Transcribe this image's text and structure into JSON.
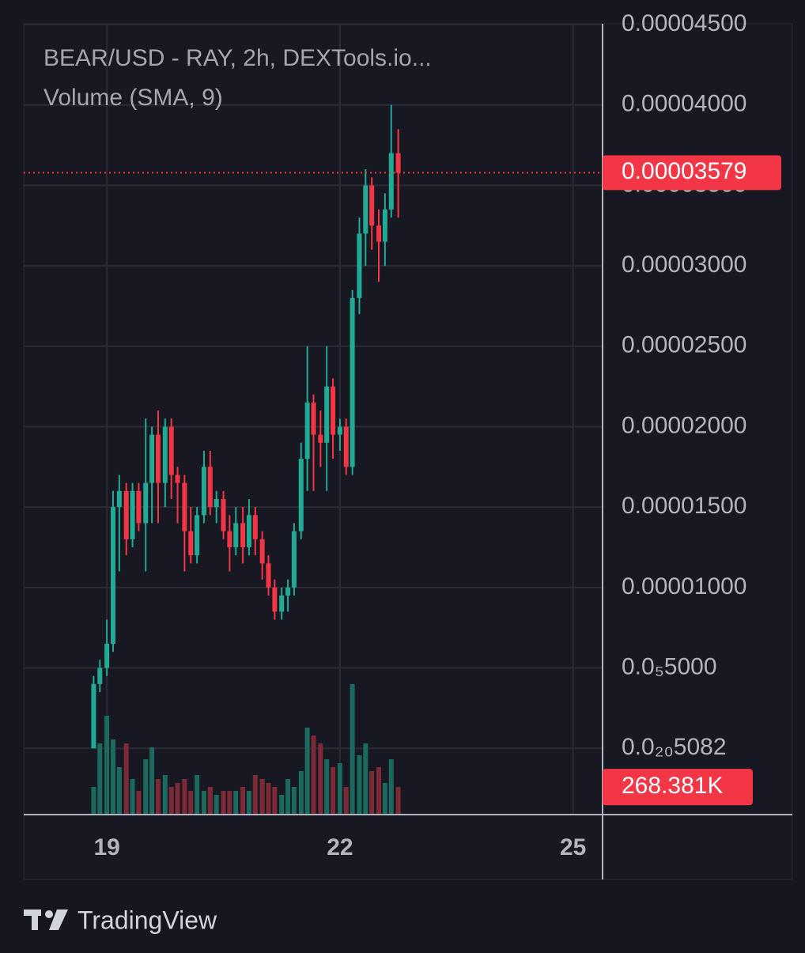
{
  "chart_data": {
    "type": "candlestick",
    "title": "BEAR/USD - RAY, 2h, DEXTools.io...",
    "subtitle": "Volume (SMA, 9)",
    "footer": "TradingView",
    "x": [
      18.83,
      18.91,
      19,
      19.08,
      19.16,
      19.25,
      19.33,
      19.41,
      19.5,
      19.58,
      19.66,
      19.75,
      19.83,
      19.91,
      20,
      20.08,
      20.16,
      20.25,
      20.33,
      20.41,
      20.5,
      20.58,
      20.66,
      20.75,
      20.83,
      20.91,
      21,
      21.08,
      21.16,
      21.25,
      21.33,
      21.41,
      21.5,
      21.58,
      21.66,
      21.75,
      21.83,
      21.91,
      22,
      22.08,
      22.16,
      22.25,
      22.33,
      22.41,
      22.5,
      22.58,
      22.66,
      22.75
    ],
    "open": [
      0.0,
      4e-06,
      5e-06,
      6.5e-06,
      1.5e-05,
      1.6e-05,
      1.3e-05,
      1.6e-05,
      1.4e-05,
      1.65e-05,
      1.95e-05,
      1.65e-05,
      2e-05,
      1.7e-05,
      1.65e-05,
      1.35e-05,
      1.2e-05,
      1.45e-05,
      1.75e-05,
      1.5e-05,
      1.55e-05,
      1.35e-05,
      1.25e-05,
      1.4e-05,
      1.25e-05,
      1.45e-05,
      1.3e-05,
      1.15e-05,
      1e-05,
      8.5e-06,
      9.5e-06,
      1e-05,
      1.35e-05,
      1.8e-05,
      2.15e-05,
      1.95e-05,
      1.9e-05,
      2.25e-05,
      1.95e-05,
      2e-05,
      1.75e-05,
      2.8e-05,
      3.2e-05,
      3.5e-05,
      3.25e-05,
      3.15e-05,
      3.35e-05,
      3.7e-05
    ],
    "high": [
      4.5e-06,
      5.5e-06,
      8e-06,
      1.6e-05,
      1.7e-05,
      1.65e-05,
      1.65e-05,
      1.65e-05,
      2.05e-05,
      2e-05,
      2.1e-05,
      2.05e-05,
      2.05e-05,
      1.75e-05,
      1.7e-05,
      1.5e-05,
      1.5e-05,
      1.85e-05,
      1.85e-05,
      1.6e-05,
      1.6e-05,
      1.45e-05,
      1.5e-05,
      1.5e-05,
      1.55e-05,
      1.5e-05,
      1.35e-05,
      1.2e-05,
      1.05e-05,
      1e-05,
      1.05e-05,
      1.4e-05,
      1.9e-05,
      2.5e-05,
      2.2e-05,
      2.1e-05,
      2.5e-05,
      2.3e-05,
      2.05e-05,
      2.05e-05,
      2.85e-05,
      3.3e-05,
      3.6e-05,
      3.55e-05,
      3.35e-05,
      3.45e-05,
      4e-05,
      3.85e-05
    ],
    "low": [
      0.0,
      3.5e-06,
      4.5e-06,
      6e-06,
      1.1e-05,
      1.2e-05,
      1.25e-05,
      1.35e-05,
      1.1e-05,
      1.4e-05,
      1.4e-05,
      1.5e-05,
      1.55e-05,
      1.4e-05,
      1.1e-05,
      1.15e-05,
      1.15e-05,
      1.4e-05,
      1.45e-05,
      1.4e-05,
      1.3e-05,
      1.1e-05,
      1.2e-05,
      1.15e-05,
      1.2e-05,
      1.2e-05,
      1.05e-05,
      9.5e-06,
      8e-06,
      8e-06,
      8.5e-06,
      9.5e-06,
      1.3e-05,
      1.6e-05,
      1.6e-05,
      1.75e-05,
      1.6e-05,
      1.8e-05,
      1.85e-05,
      1.7e-05,
      1.7e-05,
      2.7e-05,
      3e-05,
      3.1e-05,
      2.9e-05,
      3e-05,
      3.3e-05,
      3.3e-05
    ],
    "close": [
      4e-06,
      5e-06,
      6.5e-06,
      1.5e-05,
      1.6e-05,
      1.3e-05,
      1.6e-05,
      1.4e-05,
      1.65e-05,
      1.95e-05,
      1.65e-05,
      2e-05,
      1.7e-05,
      1.65e-05,
      1.35e-05,
      1.2e-05,
      1.45e-05,
      1.75e-05,
      1.5e-05,
      1.55e-05,
      1.35e-05,
      1.25e-05,
      1.4e-05,
      1.25e-05,
      1.45e-05,
      1.3e-05,
      1.15e-05,
      1e-05,
      8.5e-06,
      9.5e-06,
      1e-05,
      1.35e-05,
      1.8e-05,
      2.15e-05,
      1.95e-05,
      1.9e-05,
      2.25e-05,
      1.95e-05,
      2e-05,
      1.75e-05,
      2.8e-05,
      3.2e-05,
      3.5e-05,
      3.25e-05,
      3.15e-05,
      3.35e-05,
      3.7e-05,
      3.579e-05
    ],
    "volume": [
      269500,
      693000,
      962500,
      731500,
      462000,
      693000,
      346500,
      231000,
      539000,
      654500,
      346500,
      385000,
      269500,
      308000,
      346500,
      231000,
      385000,
      231000,
      269500,
      192500,
      231000,
      231000,
      231000,
      269500,
      231000,
      385000,
      346500,
      308000,
      269500,
      192500,
      346500,
      269500,
      423500,
      847000,
      770000,
      693000,
      539000,
      462000,
      500500,
      269500,
      1270500,
      577500,
      693000,
      423500,
      462000,
      308000,
      539000,
      268381
    ],
    "last_volume_label": "268.381K",
    "up_color": "#22ab94",
    "down_color": "#f23645",
    "up_volume_color": "#1a6a60",
    "down_volume_color": "#7c2b36",
    "xlim": [
      17.93,
      25.38
    ],
    "xticks": [
      19,
      22,
      25
    ],
    "ylim": [
      -4.12e-06,
      4.505e-05
    ],
    "yticks": [
      {
        "value": 5.082e-21,
        "label": "0.0₂₀5082"
      },
      {
        "value": 5e-06,
        "label": "0.0₅5000"
      },
      {
        "value": 1e-05,
        "label": "0.00001000"
      },
      {
        "value": 1.5e-05,
        "label": "0.00001500"
      },
      {
        "value": 2e-05,
        "label": "0.00002000"
      },
      {
        "value": 2.5e-05,
        "label": "0.00002500"
      },
      {
        "value": 3e-05,
        "label": "0.00003000"
      },
      {
        "value": 3.5e-05,
        "label": "0.00003500"
      },
      {
        "value": 4e-05,
        "label": "0.00004000"
      },
      {
        "value": 4.5e-05,
        "label": "0.00004500"
      }
    ],
    "volume_ylim": [
      0,
      7700000
    ],
    "grid": true
  }
}
